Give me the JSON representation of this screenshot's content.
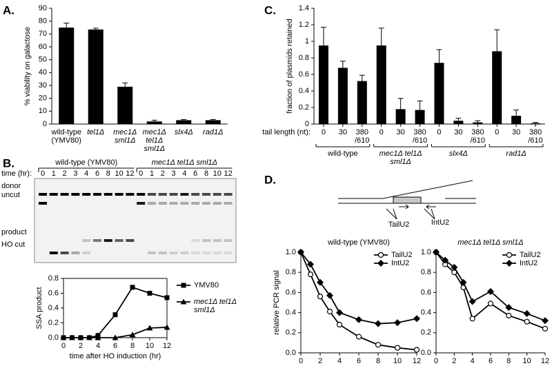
{
  "panel_labels": [
    "A.",
    "B.",
    "C.",
    "D."
  ],
  "gel": {
    "time_label": "time (hr):",
    "groups": [
      {
        "label": "wild-type (YMV80)",
        "lanes": [
          0,
          1,
          2,
          3,
          4,
          6,
          8,
          10,
          12
        ]
      },
      {
        "label": "mec1Δ tel1Δ sml1Δ",
        "lanes": [
          0,
          1,
          2,
          3,
          4,
          6,
          8,
          10,
          12
        ]
      }
    ],
    "rows": [
      "donor",
      "uncut",
      "product",
      "HO cut"
    ]
  },
  "schematic": {
    "primers": [
      "TailU2",
      "IntU2"
    ]
  },
  "chart_data": [
    {
      "type": "bar",
      "ylabel": "% viability on galactose",
      "categories": [
        "wild-type\n(YMV80)",
        "tel1Δ",
        "mec1Δ\nsml1Δ",
        "mec1Δ\ntel1Δ\nsml1Δ",
        "slx4Δ",
        "rad1Δ"
      ],
      "values": [
        75,
        73.5,
        29,
        2,
        3,
        3
      ],
      "errors": [
        3.5,
        1,
        3,
        1,
        0.5,
        0.5
      ],
      "color": "#000000",
      "ylim": [
        0,
        90
      ],
      "yticks": [
        0,
        10,
        20,
        30,
        40,
        50,
        60,
        70,
        80,
        90
      ]
    },
    {
      "type": "grouped_bar",
      "ylabel": "fraction of plasmids retained",
      "category_label": "tail length (nt):",
      "groups": [
        {
          "label": "wild-type",
          "categories": [
            "0",
            "30",
            "380\n/610"
          ],
          "values": [
            0.95,
            0.68,
            0.52
          ],
          "errors": [
            0.22,
            0.08,
            0.07
          ]
        },
        {
          "label": "mec1Δ tel1Δ\nsml1Δ",
          "categories": [
            "0",
            "30",
            "380\n/610"
          ],
          "values": [
            0.95,
            0.18,
            0.17
          ],
          "errors": [
            0.21,
            0.13,
            0.11
          ]
        },
        {
          "label": "slx4Δ",
          "categories": [
            "0",
            "30",
            "380\n/610"
          ],
          "values": [
            0.74,
            0.04,
            0.02
          ],
          "errors": [
            0.16,
            0.03,
            0.02
          ]
        },
        {
          "label": "rad1Δ",
          "categories": [
            "0",
            "30",
            "380\n/610"
          ],
          "values": [
            0.88,
            0.1,
            0.01
          ],
          "errors": [
            0.26,
            0.07,
            0.01
          ]
        }
      ],
      "color": "#000000",
      "ylim": [
        0,
        1.4
      ],
      "yticks": [
        0,
        0.2,
        0.4,
        0.6,
        0.8,
        1,
        1.2,
        1.4
      ]
    },
    {
      "type": "line",
      "ylabel": "SSA product",
      "xlabel": "time after HO induction (hr)",
      "x": [
        0,
        1,
        2,
        3,
        4,
        6,
        8,
        10,
        12
      ],
      "xlim": [
        0,
        12
      ],
      "xticks": [
        0,
        2,
        4,
        6,
        8,
        10,
        12
      ],
      "ylim": [
        0,
        0.8
      ],
      "yticks": [
        {
          "value": 0,
          "label": "0.0"
        },
        0.2,
        0.4,
        0.6,
        0.8
      ],
      "frame": true,
      "legend": "outside right",
      "series": [
        {
          "name": "YMV80",
          "color": "#000000",
          "marker": "square",
          "values": [
            0,
            0,
            0,
            0,
            0.03,
            0.31,
            0.68,
            0.6,
            0.54
          ]
        },
        {
          "name": "mec1Δ tel1Δ\nsml1Δ",
          "color": "#000000",
          "marker": "triangle",
          "values": [
            0,
            0,
            0,
            0,
            0,
            0,
            0.04,
            0.13,
            0.14
          ]
        }
      ]
    },
    {
      "type": "line",
      "title": "wild-type (YMV80)",
      "ylabel": "relative PCR signal",
      "xlabel": "time after HO induction (hr)",
      "x": [
        0,
        1,
        2,
        3,
        4,
        6,
        8,
        10,
        12
      ],
      "xlim": [
        0,
        12
      ],
      "xticks": [
        0,
        2,
        4,
        6,
        8,
        10,
        12
      ],
      "ylim": [
        0,
        1
      ],
      "yticks": [
        {
          "value": 0,
          "label": "0.0"
        },
        0.2,
        0.4,
        0.6,
        0.8,
        {
          "value": 1,
          "label": "1.0"
        }
      ],
      "legend": "upper right",
      "series": [
        {
          "name": "TailU2",
          "color": "#000000",
          "marker": "circle-open",
          "values": [
            1,
            0.78,
            0.56,
            0.41,
            0.28,
            0.16,
            0.08,
            0.05,
            0.03
          ]
        },
        {
          "name": "IntU2",
          "color": "#000000",
          "marker": "diamond",
          "values": [
            1,
            0.88,
            0.7,
            0.57,
            0.4,
            0.33,
            0.29,
            0.3,
            0.34
          ]
        }
      ]
    },
    {
      "type": "line",
      "title": "mec1Δ tel1Δ sml1Δ",
      "xlabel": "time after HO induction (hr)",
      "x": [
        0,
        1,
        2,
        3,
        4,
        6,
        8,
        10,
        12
      ],
      "xlim": [
        0,
        12
      ],
      "xticks": [
        0,
        2,
        4,
        6,
        8,
        10,
        12
      ],
      "ylim": [
        0,
        1
      ],
      "yticks": [
        {
          "value": 0,
          "label": "0.0"
        },
        0.2,
        0.4,
        0.6,
        0.8,
        {
          "value": 1,
          "label": "1.0"
        }
      ],
      "legend": "upper right",
      "series": [
        {
          "name": "TailU2",
          "color": "#000000",
          "marker": "circle-open",
          "values": [
            1,
            0.88,
            0.8,
            0.65,
            0.34,
            0.49,
            0.37,
            0.31,
            0.24
          ]
        },
        {
          "name": "IntU2",
          "color": "#000000",
          "marker": "diamond",
          "values": [
            1,
            0.92,
            0.85,
            0.7,
            0.51,
            0.61,
            0.45,
            0.39,
            0.32
          ]
        }
      ]
    }
  ]
}
